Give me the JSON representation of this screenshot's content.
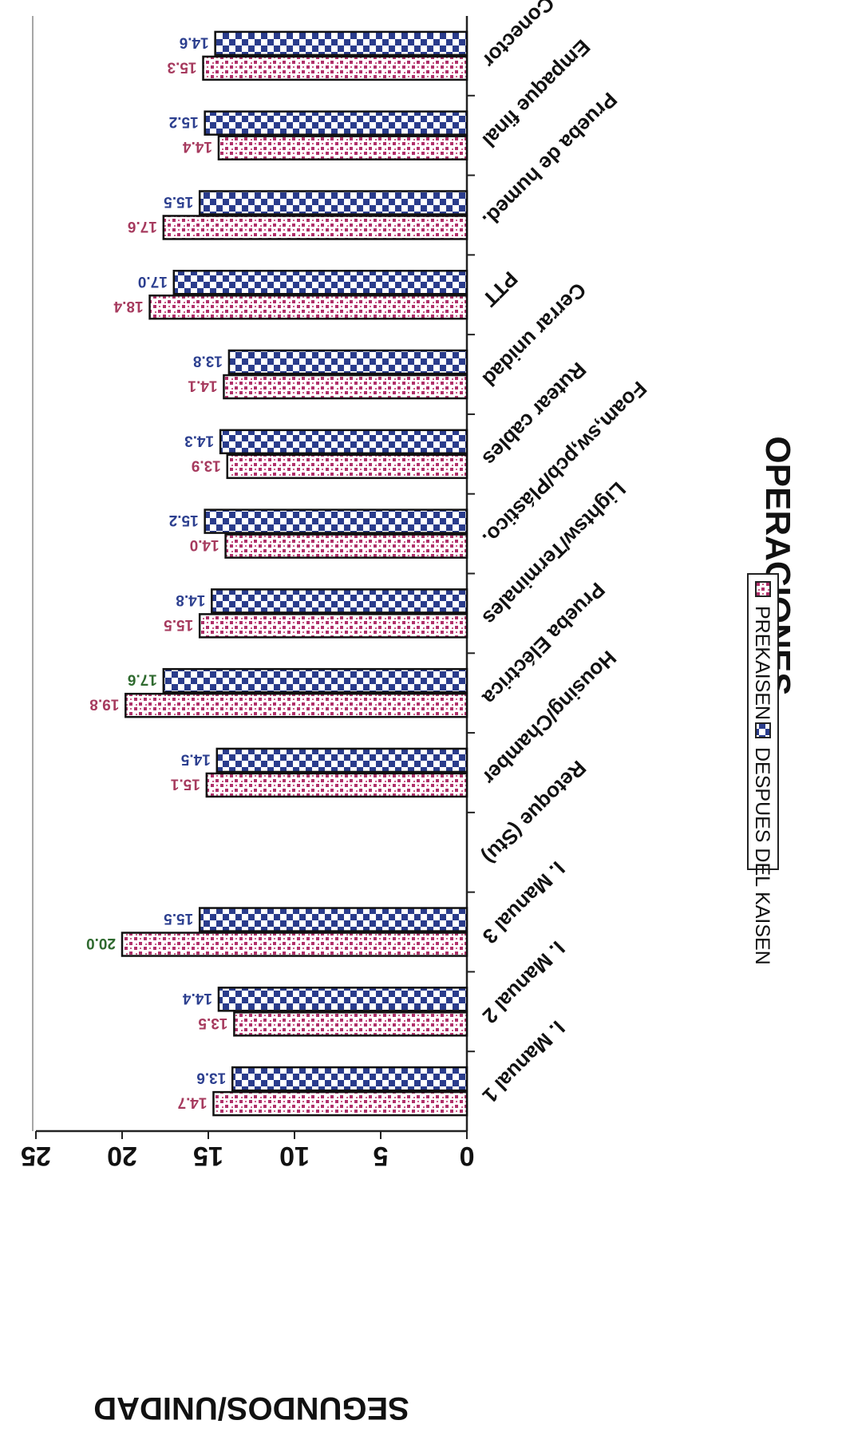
{
  "chart_data": {
    "type": "bar",
    "orientation": "horizontal",
    "rotation": "image rotated 180 degrees",
    "title": "",
    "xlabel": "OPERACIONES",
    "ylabel": "SEGUNDOS/UNIDAD",
    "ylim": [
      0,
      25
    ],
    "yticks": [
      "0",
      "5",
      "10",
      "15",
      "20",
      "25"
    ],
    "grid": false,
    "legend_position": "bottom",
    "categories": [
      "I. Manual 1",
      "I. Manual 2",
      "I. Manual 3",
      "Retoque (Stu)",
      "Housing/Chamber",
      "Prueba Eléctrica",
      "Lightsw/Terminales",
      "Foam,sw,pcb/Plástico.",
      "Rutear cables",
      "Cerrar unidad",
      "PTT",
      "Prueba de humed.",
      "Empaque final",
      "Conector"
    ],
    "series": [
      {
        "name": "PREKAISEN",
        "values": [
          14.7,
          13.5,
          20.0,
          null,
          15.1,
          19.8,
          15.5,
          14.0,
          13.9,
          14.1,
          18.4,
          17.6,
          14.4,
          15.3
        ],
        "labels": [
          "14.7",
          "13.5",
          "20.0",
          "",
          "15.1",
          "19.8",
          "15.5",
          "14.0",
          "13.9",
          "14.1",
          "18.4",
          "17.6",
          "14.4",
          "15.3"
        ],
        "label_colors": [
          "#a63a5e",
          "#a63a5e",
          "#2f6a2f",
          "#a63a5e",
          "#a63a5e",
          "#a63a5e",
          "#a63a5e",
          "#a63a5e",
          "#a63a5e",
          "#a63a5e",
          "#a63a5e",
          "#a63a5e",
          "#a63a5e",
          "#a63a5e"
        ]
      },
      {
        "name": "DESPUES DEL KAISEN",
        "values": [
          13.6,
          14.4,
          15.5,
          null,
          14.5,
          17.6,
          14.8,
          15.2,
          14.3,
          13.8,
          17.0,
          15.5,
          15.2,
          14.6
        ],
        "labels": [
          "13.6",
          "14.4",
          "15.5",
          "",
          "14.5",
          "17.6",
          "14.8",
          "15.2",
          "14.3",
          "13.8",
          "17.0",
          "15.5",
          "15.2",
          "14.6"
        ],
        "label_colors": [
          "#2c3f8f",
          "#2c3f8f",
          "#2c3f8f",
          "#2c3f8f",
          "#2c3f8f",
          "#2f6a2f",
          "#2c3f8f",
          "#2c3f8f",
          "#2c3f8f",
          "#2c3f8f",
          "#2c3f8f",
          "#2c3f8f",
          "#2c3f8f",
          "#2c3f8f"
        ]
      }
    ],
    "colors": {
      "prekaisen_dots": "#b0306a",
      "despues_checks": "#2a3c8c",
      "axis": "#222222",
      "label_green": "#2f6a2f"
    }
  },
  "legend": {
    "prekaisen_label": "PREKAISEN",
    "despues_label": "DESPUES DEL KAISEN"
  }
}
